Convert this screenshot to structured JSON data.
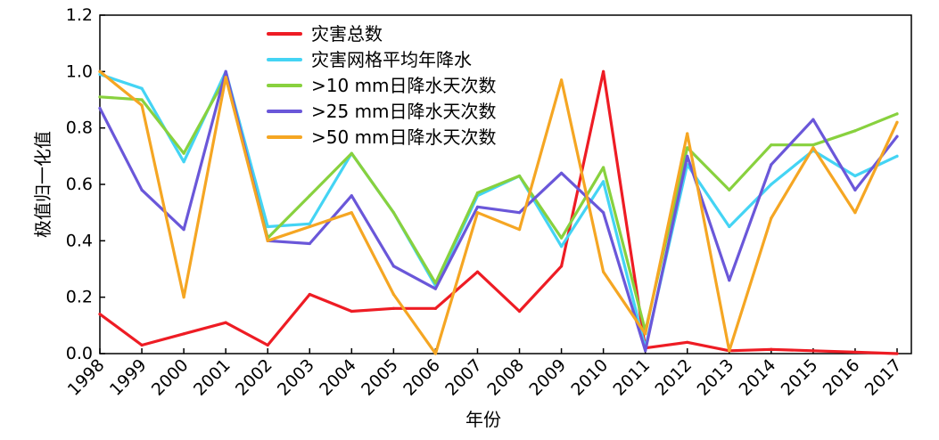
{
  "chart_data": {
    "type": "line",
    "title": "",
    "xlabel": "年份",
    "ylabel": "极值归一化值",
    "ylim": [
      0,
      1.2
    ],
    "yticks": [
      "0.0",
      "0.2",
      "0.4",
      "0.6",
      "0.8",
      "1.0",
      "1.2"
    ],
    "categories": [
      "1998",
      "1999",
      "2000",
      "2001",
      "2002",
      "2003",
      "2004",
      "2005",
      "2006",
      "2007",
      "2008",
      "2009",
      "2010",
      "2011",
      "2012",
      "2013",
      "2014",
      "2015",
      "2016",
      "2017"
    ],
    "grid": false,
    "legend": "top-center",
    "series": [
      {
        "name": "灾害总数",
        "color": "#ee1c24",
        "values": [
          0.14,
          0.03,
          0.07,
          0.11,
          0.03,
          0.21,
          0.15,
          0.16,
          0.16,
          0.29,
          0.15,
          0.31,
          1.0,
          0.02,
          0.04,
          0.01,
          0.015,
          0.01,
          0.005,
          0.0
        ]
      },
      {
        "name": "灾害网格平均年降水",
        "color": "#44d4f4",
        "values": [
          0.99,
          0.94,
          0.68,
          1.0,
          0.45,
          0.46,
          0.71,
          0.5,
          0.24,
          0.56,
          0.63,
          0.38,
          0.61,
          0.02,
          0.67,
          0.45,
          0.6,
          0.72,
          0.63,
          0.7
        ]
      },
      {
        "name": ">10 mm日降水天次数",
        "color": "#88d13e",
        "values": [
          0.91,
          0.9,
          0.71,
          0.98,
          0.41,
          0.56,
          0.71,
          0.5,
          0.25,
          0.57,
          0.63,
          0.41,
          0.66,
          0.08,
          0.73,
          0.58,
          0.74,
          0.74,
          0.79,
          0.85
        ]
      },
      {
        "name": ">25 mm日降水天次数",
        "color": "#6a57d9",
        "values": [
          0.87,
          0.58,
          0.44,
          1.0,
          0.4,
          0.39,
          0.56,
          0.31,
          0.23,
          0.52,
          0.5,
          0.64,
          0.5,
          0.01,
          0.7,
          0.26,
          0.67,
          0.83,
          0.58,
          0.77
        ]
      },
      {
        "name": ">50 mm日降水天次数",
        "color": "#f5a623",
        "values": [
          1.0,
          0.88,
          0.2,
          0.98,
          0.4,
          0.45,
          0.5,
          0.21,
          0.0,
          0.5,
          0.44,
          0.97,
          0.29,
          0.07,
          0.78,
          0.01,
          0.48,
          0.73,
          0.5,
          0.82
        ]
      }
    ]
  }
}
